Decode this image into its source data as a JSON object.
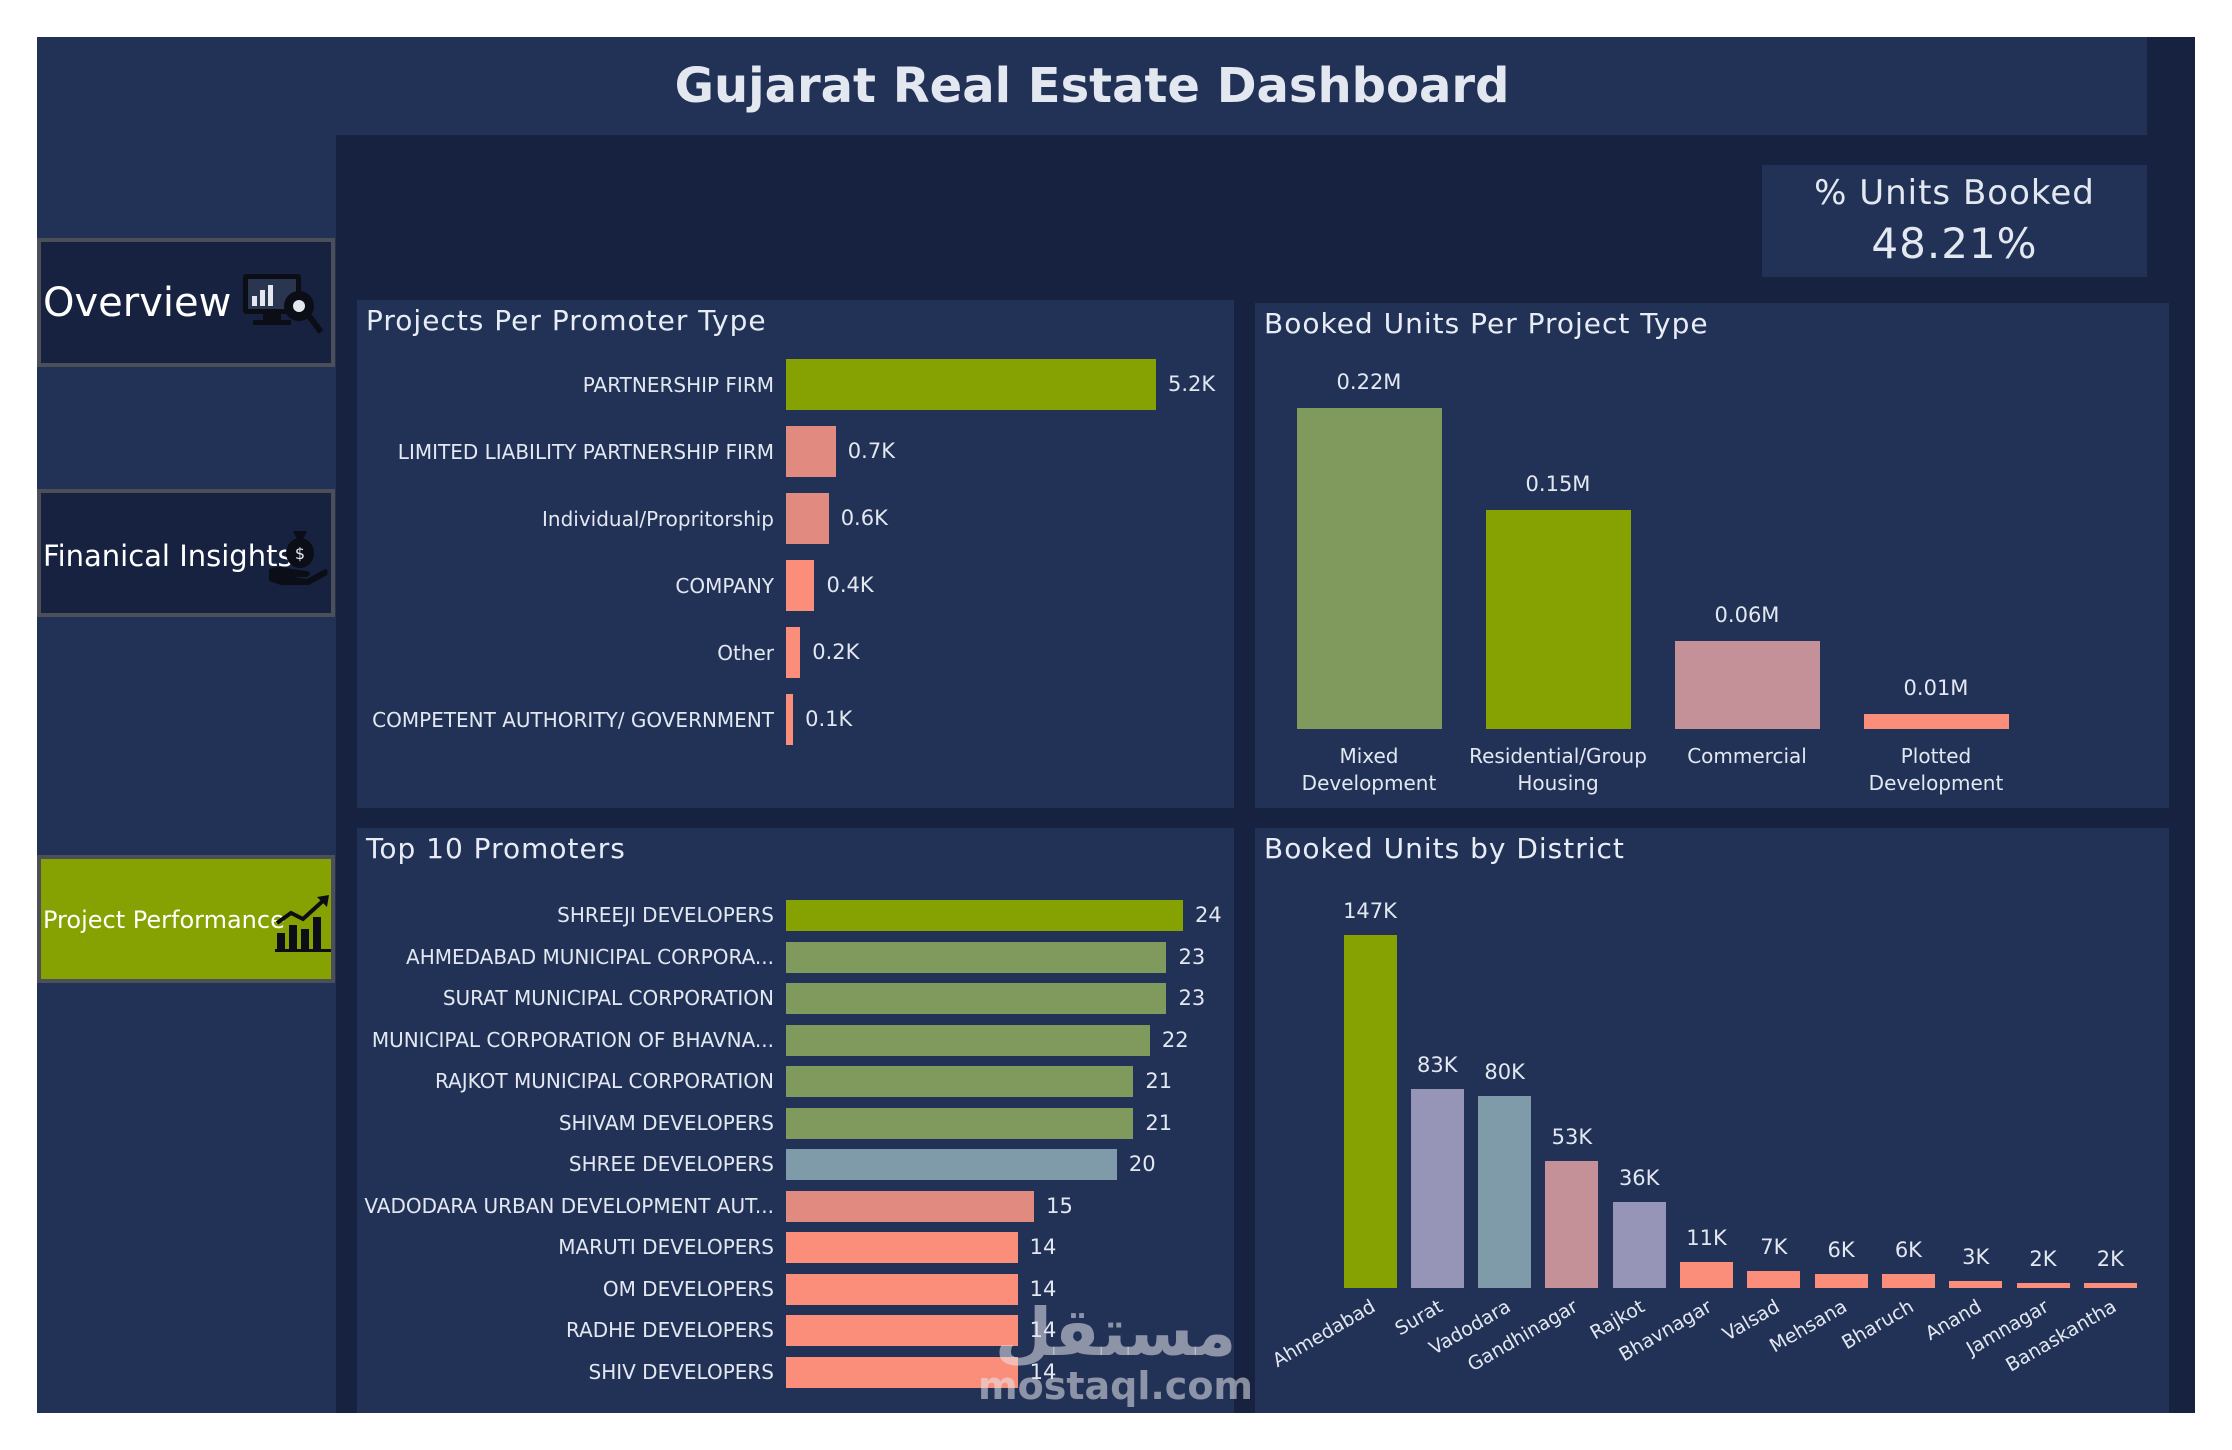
{
  "title": "Gujarat Real Estate Dashboard",
  "nav": {
    "overview": "Overview",
    "financial": "Finanical Insights",
    "performance": "Project Performance"
  },
  "kpi": {
    "label": "% Units Booked",
    "value": "48.21%"
  },
  "colors": {
    "olive": "#86a102",
    "sage": "#80995d",
    "salmon": "#fa8e7a",
    "pink": "#e08a80",
    "mauve": "#c49198",
    "lavender": "#9695b7",
    "steel": "#7f9aa8",
    "navy": "#223257",
    "dark": "#16223f"
  },
  "panels": {
    "promoter_type": "Projects Per Promoter Type",
    "project_type": "Booked Units Per Project Type",
    "top_promoters": "Top 10 Promoters",
    "district": "Booked Units by District"
  },
  "chart_data": [
    {
      "type": "bar",
      "orientation": "horizontal",
      "title": "Projects Per Promoter Type",
      "categories": [
        "PARTNERSHIP FIRM",
        "LIMITED LIABILITY PARTNERSHIP FIRM",
        "Individual/Propritorship",
        "COMPANY",
        "Other",
        "COMPETENT AUTHORITY/ GOVERNMENT"
      ],
      "values": [
        5200,
        700,
        600,
        400,
        200,
        100
      ],
      "labels": [
        "5.2K",
        "0.7K",
        "0.6K",
        "0.4K",
        "0.2K",
        "0.1K"
      ]
    },
    {
      "type": "bar",
      "title": "Booked Units Per Project Type",
      "categories": [
        "Mixed Development",
        "Residential/Group Housing",
        "Commercial",
        "Plotted Development"
      ],
      "values": [
        220000,
        150000,
        60000,
        10000
      ],
      "labels": [
        "0.22M",
        "0.15M",
        "0.06M",
        "0.01M"
      ]
    },
    {
      "type": "bar",
      "orientation": "horizontal",
      "title": "Top 10 Promoters",
      "categories": [
        "SHREEJI DEVELOPERS",
        "AHMEDABAD MUNICIPAL CORPORA...",
        "SURAT MUNICIPAL CORPORATION",
        "MUNICIPAL CORPORATION OF BHAVNA...",
        "RAJKOT MUNICIPAL CORPORATION",
        "SHIVAM DEVELOPERS",
        "SHREE DEVELOPERS",
        "VADODARA URBAN DEVELOPMENT AUT...",
        "MARUTI DEVELOPERS",
        "OM DEVELOPERS",
        "RADHE DEVELOPERS",
        "SHIV DEVELOPERS"
      ],
      "values": [
        24,
        23,
        23,
        22,
        21,
        21,
        20,
        15,
        14,
        14,
        14,
        14
      ]
    },
    {
      "type": "bar",
      "title": "Booked Units by District",
      "categories": [
        "Ahmedabad",
        "Surat",
        "Vadodara",
        "Gandhinagar",
        "Rajkot",
        "Bhavnagar",
        "Valsad",
        "Mehsana",
        "Bharuch",
        "Anand",
        "Jamnagar",
        "Banaskantha"
      ],
      "values": [
        147000,
        83000,
        80000,
        53000,
        36000,
        11000,
        7000,
        6000,
        6000,
        3000,
        2000,
        2000
      ],
      "labels": [
        "147K",
        "83K",
        "80K",
        "53K",
        "36K",
        "11K",
        "7K",
        "6K",
        "6K",
        "3K",
        "2K",
        "2K"
      ]
    }
  ],
  "watermark": {
    "arabic": "مستقل",
    "site": "mostaql.com"
  }
}
